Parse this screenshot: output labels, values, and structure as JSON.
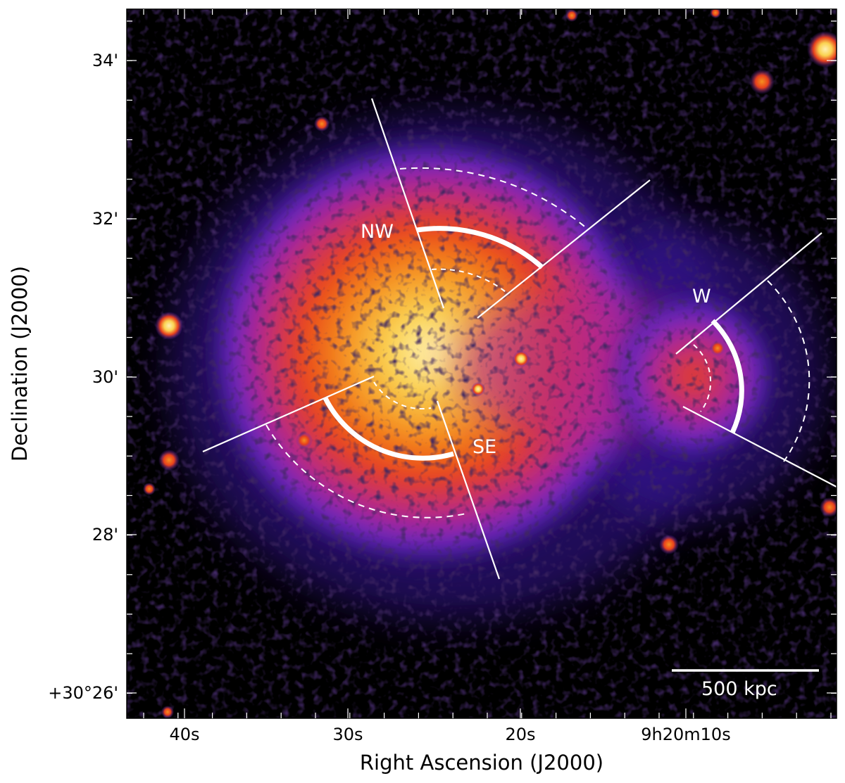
{
  "axes": {
    "xlabel": "Right Ascension (J2000)",
    "ylabel": "Declination (J2000)",
    "x_ticks": [
      "40s",
      "30s",
      "20s",
      "9h20m10s"
    ],
    "y_ticks": [
      "34'",
      "32'",
      "30'",
      "28'",
      "+30°26'"
    ]
  },
  "regions": {
    "nw": "NW",
    "se": "SE",
    "w": "W"
  },
  "scale_bar": {
    "label": "500 kpc"
  },
  "colors": {
    "background": "#000000",
    "colormap": [
      "#000000",
      "#2a0a5a",
      "#5a28c8",
      "#b4288c",
      "#e8401c",
      "#f59020",
      "#fad250",
      "#fff0b4"
    ],
    "annotation": "#ffffff"
  }
}
